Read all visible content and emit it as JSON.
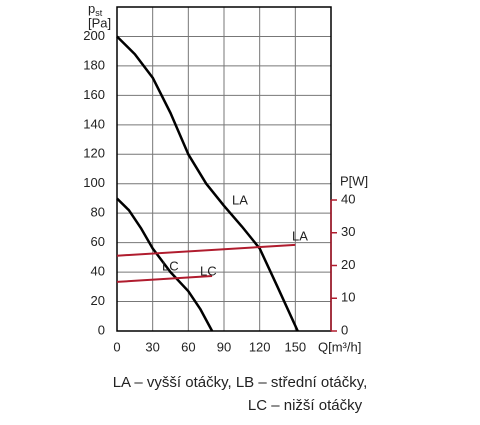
{
  "chart_data": {
    "type": "line",
    "y_label": {
      "symbol": "p",
      "subscript": "st",
      "unit": "[Pa]"
    },
    "x_label": "Q[m³/h]",
    "y2_label": "P[W]",
    "xlim": [
      0,
      180
    ],
    "xticks": [
      0,
      30,
      60,
      90,
      120,
      150
    ],
    "ylim": [
      0,
      220
    ],
    "yticks": [
      0,
      20,
      40,
      60,
      80,
      100,
      120,
      140,
      160,
      180,
      200
    ],
    "y2lim": [
      0,
      40
    ],
    "y2ticks": [
      0,
      10,
      20,
      30,
      40
    ],
    "grid": true,
    "series": [
      {
        "name": "LA",
        "color": "#000000",
        "axis": "y",
        "x": [
          0,
          15,
          30,
          45,
          60,
          75,
          90,
          105,
          120,
          135,
          152
        ],
        "values": [
          200,
          188,
          172,
          148,
          120,
          100,
          85,
          71,
          56,
          30,
          0
        ]
      },
      {
        "name": "LC",
        "color": "#000000",
        "axis": "y",
        "x": [
          0,
          10,
          20,
          30,
          45,
          60,
          70,
          80
        ],
        "values": [
          90,
          82,
          70,
          56,
          40,
          27,
          15,
          0
        ]
      },
      {
        "name": "LA",
        "color": "#b01c2e",
        "axis": "y2",
        "x": [
          0,
          150
        ],
        "values": [
          23,
          26.3
        ]
      },
      {
        "name": "LC",
        "color": "#b01c2e",
        "axis": "y2",
        "x": [
          0,
          80
        ],
        "values": [
          15,
          16.8
        ]
      }
    ],
    "caption": [
      "LA – vyšší otáčky, LB – střední otáčky,",
      "LC – nižší otáčky"
    ]
  }
}
